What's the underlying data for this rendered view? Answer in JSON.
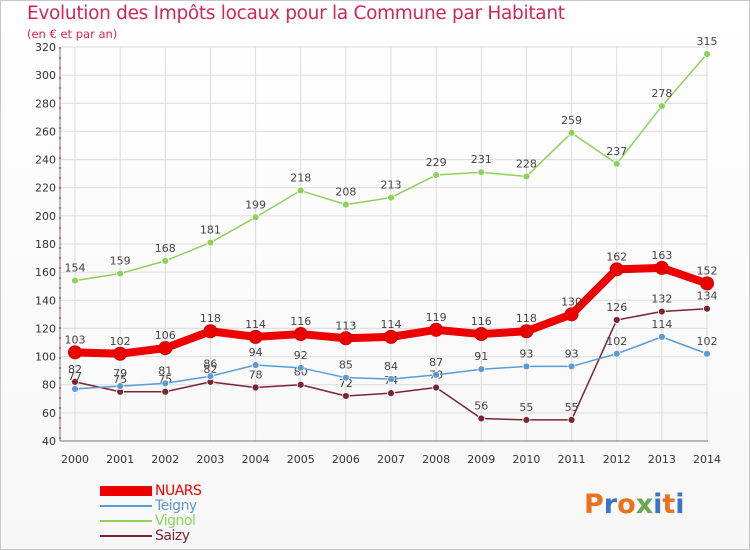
{
  "header": {
    "title": "Evolution des Impôts locaux pour la Commune par Habitant",
    "subtitle": "(en € et par an)"
  },
  "chart_data": {
    "type": "line",
    "title": "Evolution des Impôts locaux pour la Commune par Habitant",
    "subtitle": "(en € et par an)",
    "xlabel": "",
    "ylabel": "",
    "x": [
      2000,
      2001,
      2002,
      2003,
      2004,
      2005,
      2006,
      2007,
      2008,
      2009,
      2010,
      2011,
      2012,
      2013,
      2014
    ],
    "x_tick_labels": [
      "2000",
      "2001",
      "2002",
      "2003",
      "2004",
      "2005",
      "2006",
      "2007",
      "2008",
      "2009",
      "2010",
      "2011",
      "2012",
      "2013",
      "2014"
    ],
    "ylim": [
      40,
      320
    ],
    "y_ticks": [
      40,
      60,
      80,
      100,
      120,
      140,
      160,
      180,
      200,
      220,
      240,
      260,
      280,
      300,
      320
    ],
    "grid": true,
    "legend": "bottom-left",
    "series": [
      {
        "name": "Vignol",
        "color": "#8dd15a",
        "values": [
          154,
          159,
          168,
          181,
          199,
          218,
          208,
          213,
          229,
          231,
          228,
          259,
          237,
          278,
          315
        ]
      },
      {
        "name": "Saizy",
        "color": "#7a2530",
        "values": [
          82,
          75,
          75,
          82,
          78,
          80,
          72,
          74,
          78,
          56,
          55,
          55,
          126,
          132,
          134
        ]
      },
      {
        "name": "Teigny",
        "color": "#5b9bd5",
        "values": [
          77,
          79,
          81,
          86,
          94,
          92,
          85,
          84,
          87,
          91,
          93,
          93,
          102,
          114,
          102
        ]
      },
      {
        "name": "NUARS",
        "color": "#ee0000",
        "values": [
          103,
          102,
          106,
          118,
          114,
          116,
          113,
          114,
          119,
          116,
          118,
          130,
          162,
          163,
          152
        ]
      }
    ]
  },
  "legend": {
    "items": [
      {
        "label": "NUARS",
        "color": "#ee0000"
      },
      {
        "label": "Teigny",
        "color": "#5b9bd5"
      },
      {
        "label": "Vignol",
        "color": "#8dd15a"
      },
      {
        "label": "Saizy",
        "color": "#7a2530"
      }
    ]
  },
  "logo": {
    "text": "Proxiti",
    "letters": [
      "P",
      "r",
      "o",
      "x",
      "i",
      "t",
      "i"
    ],
    "colors": [
      "#e8731c",
      "#3b74c4",
      "#e8731c",
      "#6aa84f",
      "#3b74c4",
      "#e8731c",
      "#3b74c4"
    ]
  }
}
